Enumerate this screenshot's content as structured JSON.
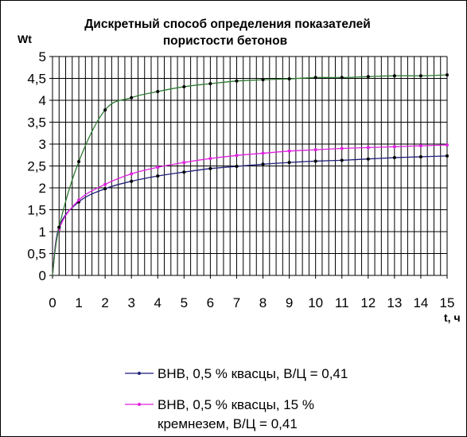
{
  "chart_data": {
    "type": "line",
    "title_lines": [
      "Дискретный способ определения показателей",
      "пористости бетонов"
    ],
    "ylabel": "Wt",
    "xlabel": "t, ч",
    "xlim": [
      0,
      15
    ],
    "ylim": [
      0,
      5
    ],
    "x_ticks": [
      0,
      1,
      2,
      3,
      4,
      5,
      6,
      7,
      8,
      9,
      10,
      11,
      12,
      13,
      14,
      15
    ],
    "y_ticks": [
      {
        "v": 0,
        "label": "0"
      },
      {
        "v": 0.5,
        "label": "0,5"
      },
      {
        "v": 1,
        "label": "1"
      },
      {
        "v": 1.5,
        "label": "1,5"
      },
      {
        "v": 2,
        "label": "2"
      },
      {
        "v": 2.5,
        "label": "2,5"
      },
      {
        "v": 3,
        "label": "3"
      },
      {
        "v": 3.5,
        "label": "3,5"
      },
      {
        "v": 4,
        "label": "4"
      },
      {
        "v": 4.5,
        "label": "4,5"
      },
      {
        "v": 5,
        "label": "5"
      }
    ],
    "grid": {
      "vertical_step": 0.25,
      "horizontal_step": 0.5
    },
    "series": [
      {
        "name": "ВНВ, 0,5 % квасцы, В/Ц = 0,41",
        "color": "#1f1f7a",
        "points": [
          [
            0,
            0
          ],
          [
            0.25,
            1.1
          ],
          [
            1,
            1.68
          ],
          [
            2,
            1.98
          ],
          [
            3,
            2.15
          ],
          [
            4,
            2.27
          ],
          [
            5,
            2.36
          ],
          [
            6,
            2.44
          ],
          [
            7,
            2.49
          ],
          [
            8,
            2.54
          ],
          [
            9,
            2.58
          ],
          [
            10,
            2.61
          ],
          [
            11,
            2.63
          ],
          [
            12,
            2.66
          ],
          [
            13,
            2.69
          ],
          [
            14,
            2.71
          ],
          [
            15,
            2.73
          ]
        ]
      },
      {
        "name": "ВНВ, 0,5 % квасцы, 15 % кремнезем, В/Ц = 0,41",
        "color": "#e020e0",
        "points": [
          [
            0,
            0
          ],
          [
            0.25,
            1.05
          ],
          [
            1,
            1.72
          ],
          [
            2,
            2.08
          ],
          [
            3,
            2.32
          ],
          [
            4,
            2.47
          ],
          [
            5,
            2.58
          ],
          [
            6,
            2.67
          ],
          [
            7,
            2.74
          ],
          [
            8,
            2.79
          ],
          [
            9,
            2.84
          ],
          [
            10,
            2.87
          ],
          [
            11,
            2.9
          ],
          [
            12,
            2.92
          ],
          [
            13,
            2.94
          ],
          [
            14,
            2.96
          ],
          [
            15,
            2.98
          ]
        ]
      },
      {
        "color": "#2e7d32",
        "points": [
          [
            0,
            0
          ],
          [
            0.25,
            1.1
          ],
          [
            1,
            2.6
          ],
          [
            2,
            3.78
          ],
          [
            3,
            4.06
          ],
          [
            4,
            4.2
          ],
          [
            5,
            4.31
          ],
          [
            6,
            4.38
          ],
          [
            7,
            4.44
          ],
          [
            8,
            4.47
          ],
          [
            9,
            4.49
          ],
          [
            10,
            4.52
          ],
          [
            11,
            4.52
          ],
          [
            12,
            4.54
          ],
          [
            13,
            4.56
          ],
          [
            14,
            4.56
          ],
          [
            15,
            4.58
          ]
        ]
      }
    ],
    "legend_items": [
      {
        "lines": [
          "ВНВ, 0,5 % квасцы, В/Ц = 0,41"
        ],
        "color": "#1f1f7a"
      },
      {
        "lines": [
          "ВНВ, 0,5 % квасцы, 15 %",
          "кремнезем, В/Ц = 0,41"
        ],
        "color": "#e020e0"
      }
    ]
  }
}
